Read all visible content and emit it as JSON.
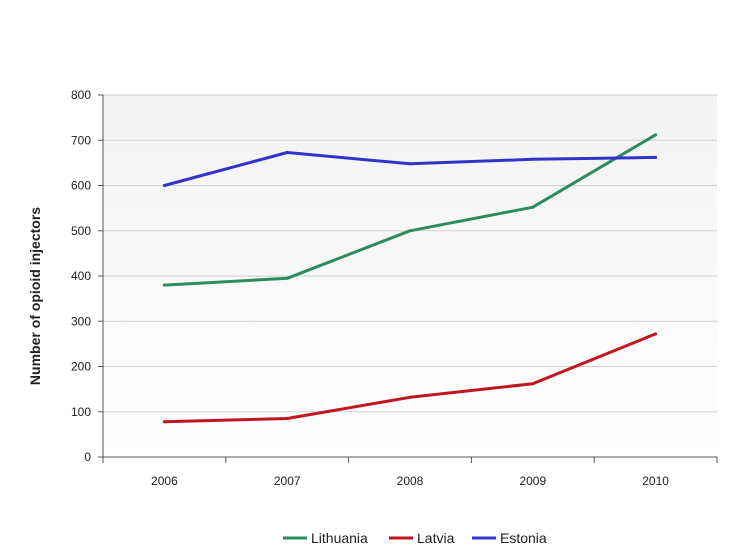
{
  "chart_data": {
    "type": "line",
    "title": "",
    "xlabel": "",
    "ylabel": "Number of opioid injectors",
    "ylim": [
      0,
      800
    ],
    "y_ticks": [
      "0",
      "100",
      "200",
      "300",
      "400",
      "500",
      "600",
      "700",
      "800"
    ],
    "categories": [
      "2006",
      "2007",
      "2008",
      "2009",
      "2010"
    ],
    "grid": true,
    "legend_position": "bottom",
    "series": [
      {
        "name": "Lithuania",
        "color": "#2e8b5e",
        "values": [
          380,
          395,
          500,
          552,
          712
        ]
      },
      {
        "name": "Latvia",
        "color": "#c0171e",
        "values": [
          78,
          85,
          132,
          162,
          272
        ]
      },
      {
        "name": "Estonia",
        "color": "#3333cc",
        "values": [
          600,
          673,
          648,
          658,
          662
        ]
      }
    ]
  }
}
